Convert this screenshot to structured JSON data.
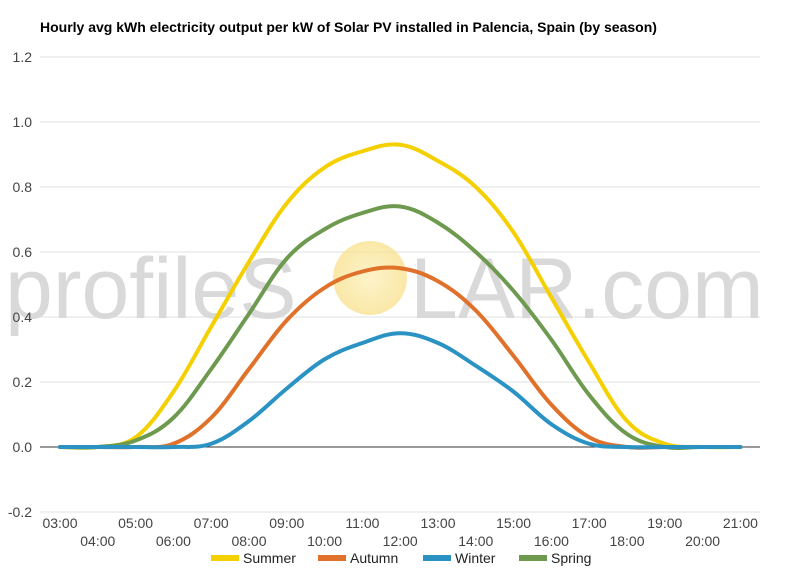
{
  "chart_data": {
    "type": "line",
    "title": "Hourly avg kWh electricity output per kW of Solar PV installed in Palencia, Spain (by season)",
    "xlabel": "",
    "ylabel": "",
    "ylim": [
      -0.2,
      1.2
    ],
    "yticks": [
      -0.2,
      0.0,
      0.2,
      0.4,
      0.6,
      0.8,
      1.0,
      1.2
    ],
    "ytick_labels": [
      "-0.2",
      "0.0",
      "0.2",
      "0.4",
      "0.6",
      "0.8",
      "1.0",
      "1.2"
    ],
    "x": [
      "03:00",
      "04:00",
      "05:00",
      "06:00",
      "07:00",
      "08:00",
      "09:00",
      "10:00",
      "11:00",
      "12:00",
      "13:00",
      "14:00",
      "15:00",
      "16:00",
      "17:00",
      "18:00",
      "19:00",
      "20:00",
      "21:00"
    ],
    "grid": true,
    "legend": "bottom",
    "series": [
      {
        "name": "Summer",
        "color": "#f5d000",
        "values": [
          0.0,
          0.0,
          0.03,
          0.17,
          0.37,
          0.57,
          0.75,
          0.86,
          0.91,
          0.93,
          0.88,
          0.8,
          0.66,
          0.46,
          0.26,
          0.08,
          0.01,
          0.0,
          0.0
        ]
      },
      {
        "name": "Autumn",
        "color": "#e0712a",
        "values": [
          0.0,
          0.0,
          0.0,
          0.01,
          0.09,
          0.24,
          0.39,
          0.49,
          0.54,
          0.55,
          0.51,
          0.42,
          0.28,
          0.13,
          0.03,
          0.0,
          0.0,
          0.0,
          0.0
        ]
      },
      {
        "name": "Winter",
        "color": "#2b93c4",
        "values": [
          0.0,
          0.0,
          0.0,
          0.0,
          0.01,
          0.08,
          0.18,
          0.27,
          0.32,
          0.35,
          0.32,
          0.25,
          0.17,
          0.07,
          0.01,
          0.0,
          0.0,
          0.0,
          0.0
        ]
      },
      {
        "name": "Spring",
        "color": "#6e9a50",
        "values": [
          0.0,
          0.0,
          0.02,
          0.09,
          0.24,
          0.41,
          0.58,
          0.67,
          0.72,
          0.74,
          0.69,
          0.6,
          0.48,
          0.33,
          0.16,
          0.04,
          0.0,
          0.0,
          0.0
        ]
      }
    ]
  },
  "watermark": {
    "text_left": "profileS",
    "text_right": "LAR.com",
    "sun_color": "#fbe9a0"
  }
}
